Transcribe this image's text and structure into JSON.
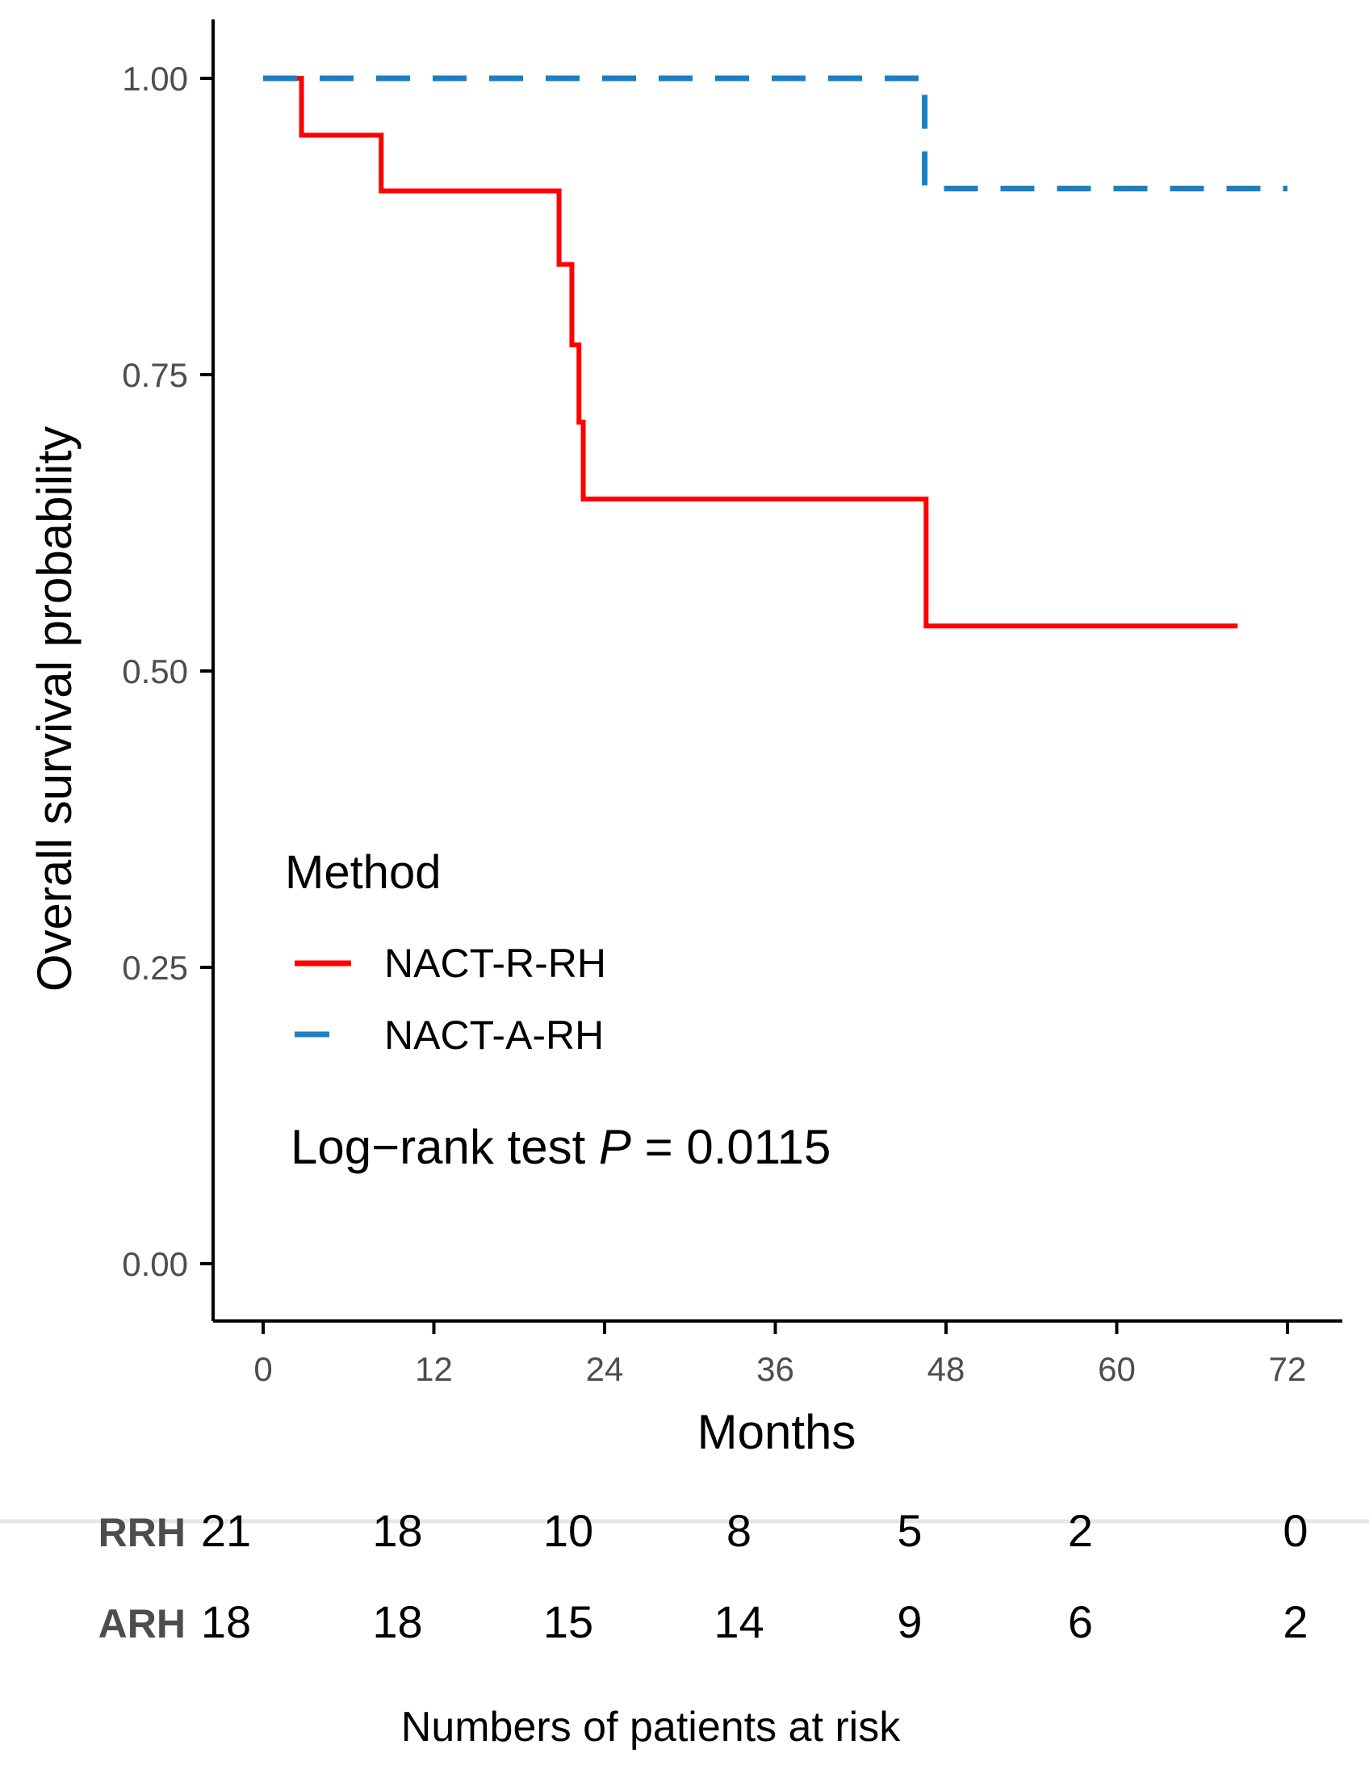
{
  "chart_data": {
    "type": "line",
    "subtype": "kaplan-meier",
    "title": "",
    "xlabel": "Months",
    "ylabel": "Overall survival probability",
    "xlim": [
      0,
      72
    ],
    "ylim": [
      0,
      1
    ],
    "x_ticks": [
      0,
      12,
      24,
      36,
      48,
      60,
      72
    ],
    "x_tick_labels": [
      "0",
      "12",
      "24",
      "36",
      "48",
      "60",
      "72"
    ],
    "y_ticks": [
      0,
      0.25,
      0.5,
      0.75,
      1
    ],
    "y_tick_labels": [
      "0.00",
      "0.25",
      "0.50",
      "0.75",
      "1.00"
    ],
    "grid": false,
    "legend": {
      "title": "Method",
      "position": "bottom-left"
    },
    "series": [
      {
        "name": "NACT-R-RH",
        "color": "#ff0000",
        "style": "solid",
        "points": [
          [
            0,
            1.0
          ],
          [
            2.7,
            0.952
          ],
          [
            8.3,
            0.905
          ],
          [
            20.8,
            0.843
          ],
          [
            21.7,
            0.775
          ],
          [
            22.2,
            0.71
          ],
          [
            22.5,
            0.645
          ],
          [
            46.6,
            0.538
          ],
          [
            68.5,
            0.538
          ]
        ]
      },
      {
        "name": "NACT-A-RH",
        "color": "#1a80c4",
        "style": "dashed",
        "points": [
          [
            0,
            1.0
          ],
          [
            46.5,
            0.907
          ],
          [
            72,
            0.907
          ]
        ]
      }
    ],
    "annotation": {
      "prefix": "Log−rank test ",
      "italic": "P",
      "suffix": " = 0.0115"
    },
    "risk_table": {
      "title": "Numbers of patients at risk",
      "rows": [
        {
          "name": "RRH",
          "values": [
            "21",
            "18",
            "10",
            "8",
            "5",
            "2",
            "0"
          ]
        },
        {
          "name": "ARH",
          "values": [
            "18",
            "18",
            "15",
            "14",
            "9",
            "6",
            "2"
          ]
        }
      ]
    }
  }
}
